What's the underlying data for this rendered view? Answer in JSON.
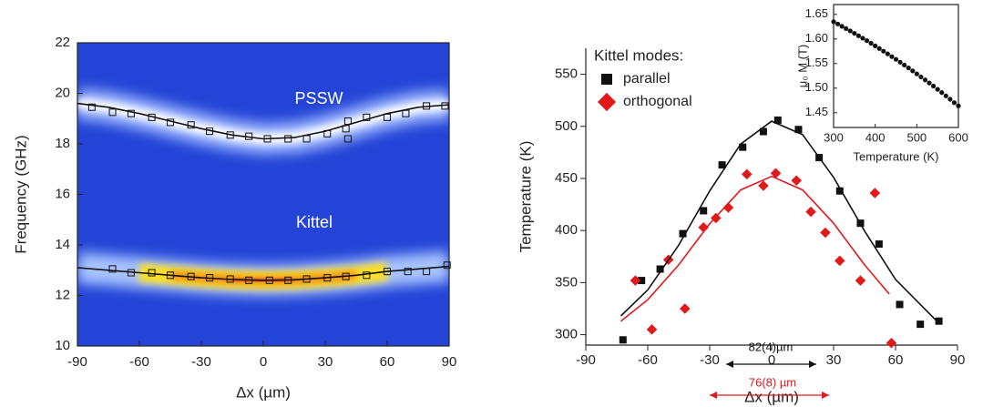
{
  "chart_data": [
    {
      "type": "scatter",
      "frame": true,
      "heatmap": true,
      "x_label": "Δx (µm)",
      "y_label": "Frequency (GHz)",
      "xlim": [
        -90,
        90
      ],
      "ylim": [
        10,
        22
      ],
      "xticks": [
        -90,
        -60,
        -30,
        0,
        30,
        60,
        90
      ],
      "yticks": [
        10,
        12,
        14,
        16,
        18,
        20,
        22
      ],
      "annotations": [
        {
          "text": "PSSW",
          "color": "#ffffff"
        },
        {
          "text": "Kittel",
          "color": "#ffffff"
        }
      ],
      "series": [
        {
          "style": "open-square",
          "color": "#222222",
          "x": [
            -83,
            -73,
            -64,
            -54,
            -45,
            -35,
            -26,
            -16,
            -7,
            2,
            12,
            21,
            31,
            40,
            41,
            41,
            50,
            60,
            69,
            79,
            88
          ],
          "values": [
            19.45,
            19.25,
            19.2,
            19.05,
            18.85,
            18.75,
            18.5,
            18.35,
            18.3,
            18.2,
            18.2,
            18.2,
            18.4,
            18.6,
            18.9,
            18.2,
            19.05,
            19.05,
            19.2,
            19.5,
            19.5
          ]
        },
        {
          "style": "line",
          "color": "#111111",
          "x": [
            -90,
            -75,
            -60,
            -45,
            -30,
            -15,
            0,
            15,
            30,
            45,
            60,
            75,
            90
          ],
          "values": [
            19.6,
            19.45,
            19.2,
            18.9,
            18.6,
            18.35,
            18.2,
            18.25,
            18.5,
            18.85,
            19.2,
            19.45,
            19.55
          ]
        },
        {
          "style": "open-square",
          "color": "#222222",
          "x": [
            -73,
            -64,
            -54,
            -45,
            -35,
            -26,
            -16,
            -7,
            3,
            12,
            21,
            31,
            40,
            50,
            60,
            70,
            79,
            89
          ],
          "values": [
            13.05,
            12.9,
            12.9,
            12.8,
            12.75,
            12.7,
            12.65,
            12.6,
            12.6,
            12.6,
            12.65,
            12.7,
            12.75,
            12.8,
            12.95,
            12.95,
            12.95,
            13.2
          ]
        },
        {
          "style": "line",
          "color": "#111111",
          "x": [
            -90,
            -75,
            -60,
            -45,
            -30,
            -15,
            0,
            15,
            30,
            45,
            60,
            75,
            90
          ],
          "values": [
            13.1,
            13.0,
            12.9,
            12.8,
            12.7,
            12.63,
            12.6,
            12.62,
            12.7,
            12.8,
            12.95,
            13.05,
            13.15
          ]
        }
      ]
    },
    {
      "type": "scatter",
      "frame": false,
      "x_label": "Δx (µm)",
      "y_label": "Temperature (K)",
      "xlim": [
        -90,
        90
      ],
      "ylim": [
        290,
        575
      ],
      "xticks": [
        -90,
        -60,
        -30,
        0,
        30,
        60,
        90
      ],
      "yticks": [
        300,
        350,
        400,
        450,
        500,
        550
      ],
      "legend_title": "Kittel modes:",
      "annotations": [
        {
          "text": "82(4)µm",
          "color": "#111111"
        },
        {
          "text": "76(8) µm",
          "color": "#e0191b"
        }
      ],
      "series": [
        {
          "name": "parallel",
          "style": "square",
          "color": "#111111",
          "x": [
            -72,
            -63,
            -54,
            -43,
            -33,
            -24,
            -14,
            -4,
            3,
            13,
            23,
            33,
            43,
            52,
            62,
            72,
            81
          ],
          "values": [
            295,
            352,
            363,
            397,
            419,
            463,
            480,
            495,
            506,
            497,
            470,
            438,
            407,
            387,
            329,
            310,
            313
          ]
        },
        {
          "name": "orthogonal",
          "style": "diamond",
          "color": "#e0191b",
          "x": [
            -66,
            -58,
            -50,
            -42,
            -33,
            -27,
            -21,
            -12,
            -4,
            2,
            12,
            19,
            26,
            33,
            43,
            50,
            58
          ],
          "values": [
            352,
            305,
            372,
            325,
            403,
            412,
            422,
            454,
            443,
            455,
            448,
            418,
            398,
            371,
            352,
            436,
            292
          ]
        },
        {
          "style": "line",
          "color": "#111111",
          "x": [
            -73,
            -60,
            -45,
            -30,
            -15,
            0,
            15,
            30,
            45,
            60,
            80
          ],
          "values": [
            318,
            343,
            386,
            438,
            483,
            505,
            492,
            451,
            399.5,
            353,
            313
          ]
        },
        {
          "style": "line",
          "color": "#e0191b",
          "x": [
            -73,
            -60,
            -45,
            -30,
            -15,
            0,
            15,
            30,
            45,
            57
          ],
          "values": [
            313,
            333.5,
            367,
            406.6,
            439,
            452,
            439,
            407,
            367,
            339
          ]
        }
      ]
    },
    {
      "type": "scatter",
      "frame": true,
      "x_label": "Temperature (K)",
      "y_label": "μ₀ M (T)",
      "xlim": [
        300,
        600
      ],
      "ylim": [
        1.42,
        1.67
      ],
      "xticks": [
        300,
        400,
        500,
        600
      ],
      "yticks": [
        1.45,
        {
          "value": 1.5,
          "label": "1.50"
        },
        1.55,
        {
          "value": 1.6,
          "label": "1.60"
        },
        1.65
      ],
      "series": [
        {
          "style": "dot",
          "color": "#111111",
          "x": [
            300,
            310,
            320,
            330,
            340,
            350,
            360,
            370,
            380,
            390,
            400,
            410,
            420,
            430,
            440,
            450,
            460,
            470,
            480,
            490,
            500,
            510,
            520,
            530,
            540,
            550,
            560,
            570,
            580,
            590,
            600
          ],
          "values": [
            1.635,
            1.6305,
            1.6258,
            1.6211,
            1.6164,
            1.6115,
            1.6066,
            1.6016,
            1.5966,
            1.5913,
            1.586,
            1.5806,
            1.5752,
            1.5697,
            1.5641,
            1.5585,
            1.5528,
            1.547,
            1.5411,
            1.5351,
            1.529,
            1.5229,
            1.5167,
            1.5105,
            1.5042,
            1.4975,
            1.491,
            1.4843,
            1.4774,
            1.4705,
            1.464
          ]
        }
      ]
    }
  ]
}
